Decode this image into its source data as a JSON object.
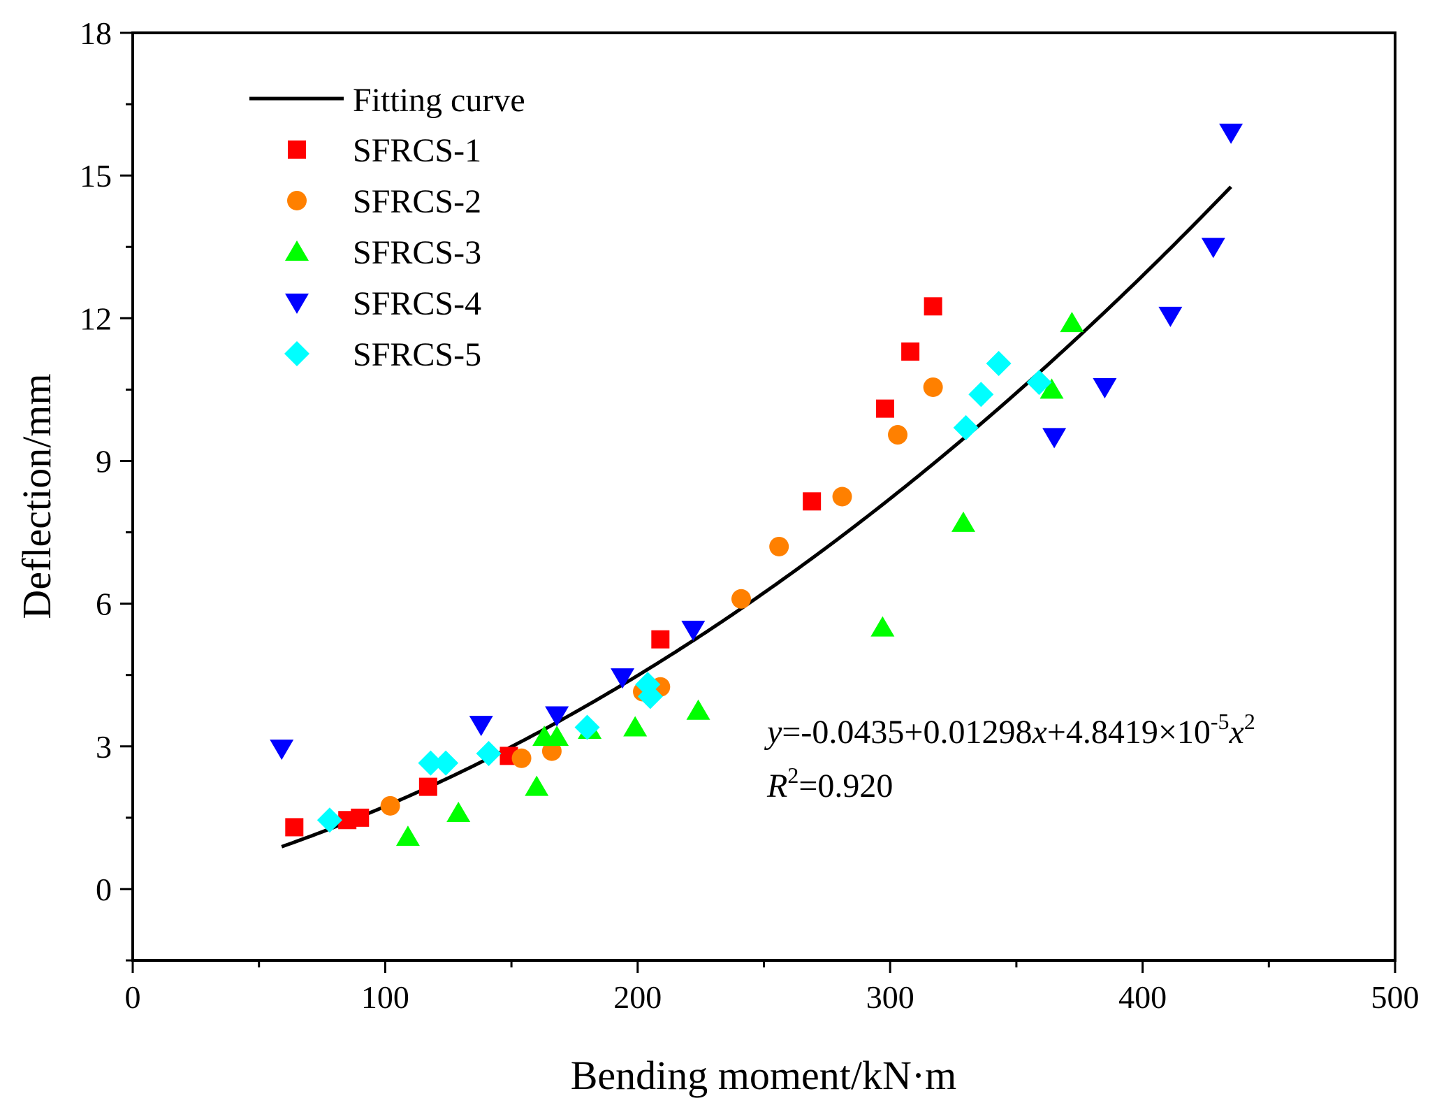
{
  "chart_data": {
    "type": "scatter",
    "xlabel": "Bending moment/kN·m",
    "ylabel": "Deflection/mm",
    "xlim": [
      0,
      500
    ],
    "ylim": [
      -1.5,
      18
    ],
    "xticks": [
      0,
      100,
      200,
      300,
      400,
      500
    ],
    "yticks": [
      0,
      3,
      6,
      9,
      12,
      15,
      18
    ],
    "grid": false,
    "legend_position": "top-left",
    "fit": {
      "name": "Fitting curve",
      "color": "#000000",
      "coefficients": [
        -0.0435,
        0.01298,
        4.8419e-05
      ],
      "x_range": [
        59,
        435
      ]
    },
    "equation": {
      "y_var": "y",
      "rhs_1": "=-0.0435+0.01298",
      "x_var_1": "x",
      "rhs_2": "+4.8419×10",
      "exp": "-5",
      "x_var_2": "x",
      "sq": "2",
      "r_var": "R",
      "r_exp": "2",
      "r_rhs": "=0.920"
    },
    "series": [
      {
        "name": "SFRCS-1",
        "marker": "square",
        "color": "#FF0000",
        "x": [
          64,
          85,
          90,
          117,
          149,
          209,
          269,
          298,
          308,
          317
        ],
        "y": [
          1.3,
          1.45,
          1.5,
          2.15,
          2.8,
          5.25,
          8.15,
          10.1,
          11.3,
          12.25
        ]
      },
      {
        "name": "SFRCS-2",
        "marker": "circle",
        "color": "#FF8000",
        "x": [
          102,
          154,
          166,
          202,
          209,
          241,
          256,
          281,
          303,
          317
        ],
        "y": [
          1.75,
          2.75,
          2.9,
          4.15,
          4.25,
          6.1,
          7.2,
          8.25,
          9.55,
          10.55
        ]
      },
      {
        "name": "SFRCS-3",
        "marker": "triangle-up",
        "color": "#00FF00",
        "x": [
          109,
          129,
          160,
          163,
          168,
          181,
          199,
          224,
          297,
          329,
          364,
          372
        ],
        "y": [
          1.1,
          1.6,
          2.15,
          3.2,
          3.2,
          3.35,
          3.4,
          3.75,
          5.5,
          7.7,
          10.5,
          11.9
        ]
      },
      {
        "name": "SFRCS-4",
        "marker": "triangle-down",
        "color": "#0000FF",
        "x": [
          59,
          138,
          168,
          194,
          222,
          365,
          385,
          411,
          428,
          435
        ],
        "y": [
          2.95,
          3.45,
          3.65,
          4.45,
          5.45,
          9.5,
          10.55,
          12.05,
          13.5,
          15.9
        ]
      },
      {
        "name": "SFRCS-5",
        "marker": "diamond",
        "color": "#00FFFF",
        "x": [
          78,
          118,
          124,
          141,
          180,
          204,
          205,
          330,
          336,
          343,
          359
        ],
        "y": [
          1.45,
          2.65,
          2.65,
          2.85,
          3.4,
          4.3,
          4.05,
          9.7,
          10.4,
          11.05,
          10.65
        ]
      }
    ]
  }
}
